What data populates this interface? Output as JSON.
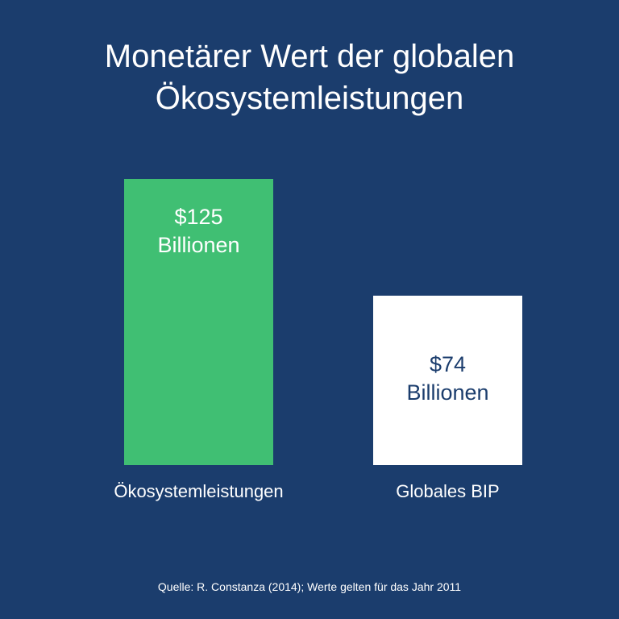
{
  "colors": {
    "background": "#1b3d6d",
    "ecosystem_bar": "#40bf73",
    "gdp_bar": "#ffffff",
    "text_light": "#ffffff",
    "text_dark": "#1b3d6d"
  },
  "title": {
    "line1": "Monetärer Wert der globalen",
    "line2": "Ökosystemleistungen"
  },
  "source": "Quelle: R. Constanza (2014); Werte gelten für das Jahr 2011",
  "chart_data": {
    "type": "bar",
    "title": "Monetärer Wert der globalen Ökosystemleistungen",
    "categories": [
      "Ökosystemleistungen",
      "Globales BIP"
    ],
    "values": [
      125,
      74
    ],
    "value_labels": [
      [
        "$125",
        "Billionen"
      ],
      [
        "$74",
        "Billionen"
      ]
    ],
    "bar_colors": [
      "#40bf73",
      "#ffffff"
    ],
    "label_colors": [
      "#ffffff",
      "#1b3d6d"
    ],
    "xlabel": "",
    "ylabel": "",
    "ylim": [
      0,
      125
    ],
    "grid": false,
    "legend": "none"
  }
}
